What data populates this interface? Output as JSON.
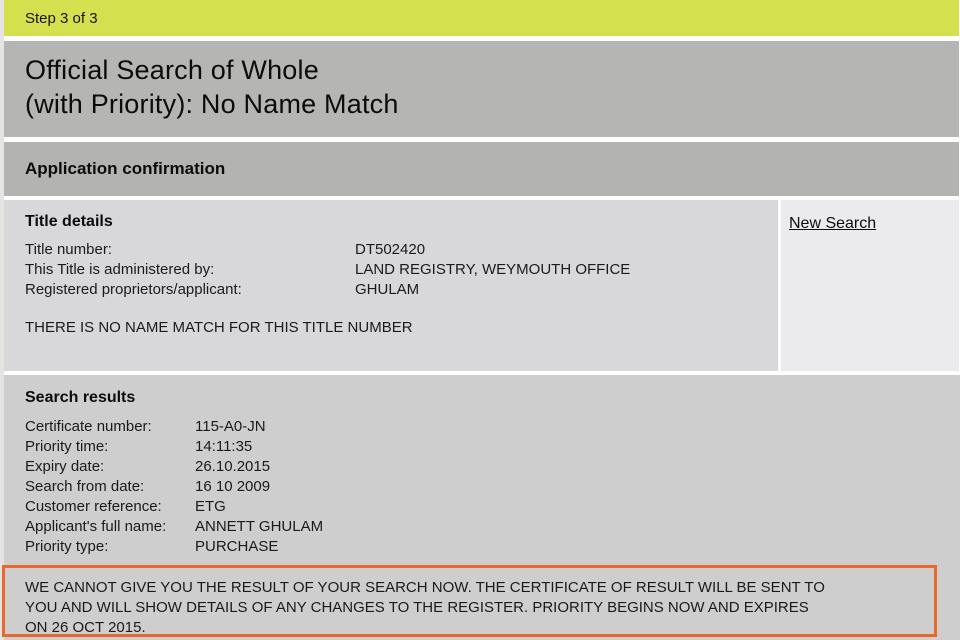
{
  "colors": {
    "step_bar_bg": "#d5e04f",
    "title_band_bg": "#b5b5b3",
    "section_bar_bg": "#b3b3b1",
    "details_box_bg": "#d8d8da",
    "side_panel_bg": "#ebebed",
    "results_box_bg": "#cecece",
    "notice_border": "#e8692b",
    "text_color": "#1a1a1a"
  },
  "step_bar": {
    "label": "Step 3 of 3"
  },
  "page_title": {
    "line1": "Official Search of Whole",
    "line2": "(with Priority): No Name Match"
  },
  "section_bar": {
    "label": "Application confirmation"
  },
  "title_details": {
    "heading": "Title details",
    "rows": [
      {
        "label": "Title number:",
        "value": "DT502420"
      },
      {
        "label": "This Title is administered by:",
        "value": "LAND REGISTRY, WEYMOUTH OFFICE"
      },
      {
        "label": "Registered proprietors/applicant:",
        "value": "GHULAM"
      }
    ],
    "no_match_message": "THERE IS NO NAME MATCH FOR THIS TITLE NUMBER"
  },
  "side_panel": {
    "new_search_label": "New Search"
  },
  "search_results": {
    "heading": "Search results",
    "rows": [
      {
        "label": "Certificate number:",
        "value": "115-A0-JN"
      },
      {
        "label": "Priority time:",
        "value": "14:11:35"
      },
      {
        "label": "Expiry date:",
        "value": "26.10.2015"
      },
      {
        "label": "Search from date:",
        "value": "16 10 2009"
      },
      {
        "label": "Customer reference:",
        "value": "ETG"
      },
      {
        "label": "Applicant's full name:",
        "value": "ANNETT GHULAM"
      },
      {
        "label": "Priority type:",
        "value": "PURCHASE"
      }
    ]
  },
  "notice": {
    "lines": [
      "WE CANNOT GIVE YOU THE RESULT OF YOUR SEARCH NOW. THE CERTIFICATE OF RESULT WILL BE SENT TO",
      "YOU AND WILL SHOW DETAILS OF ANY CHANGES TO THE REGISTER. PRIORITY BEGINS NOW AND EXPIRES",
      "ON 26 OCT 2015."
    ],
    "full_text": "WE CANNOT GIVE YOU THE RESULT OF YOUR SEARCH NOW. THE CERTIFICATE OF RESULT WILL BE SENT TO YOU AND WILL SHOW DETAILS OF ANY CHANGES TO THE REGISTER. PRIORITY BEGINS NOW AND EXPIRES ON 26 OCT 2015."
  }
}
